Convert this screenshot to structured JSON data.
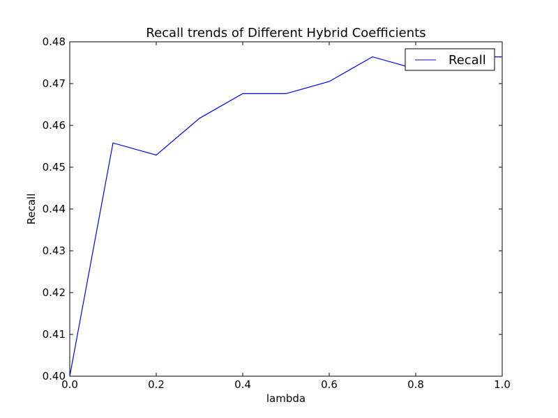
{
  "chart_data": {
    "type": "line",
    "title": "Recall trends of Different Hybrid Coefficients",
    "xlabel": "lambda",
    "ylabel": "Recall",
    "xlim": [
      0.0,
      1.0
    ],
    "ylim": [
      0.4,
      0.48
    ],
    "x_ticks": [
      "0.0",
      "0.2",
      "0.4",
      "0.6",
      "0.8",
      "1.0"
    ],
    "y_ticks": [
      "0.40",
      "0.41",
      "0.42",
      "0.43",
      "0.44",
      "0.45",
      "0.46",
      "0.47",
      "0.48"
    ],
    "grid": false,
    "legend_position": "top-right",
    "series": [
      {
        "name": "Recall",
        "color": "#0000ff",
        "x": [
          0.0,
          0.1,
          0.2,
          0.3,
          0.4,
          0.5,
          0.6,
          0.7,
          0.8,
          0.9,
          1.0
        ],
        "y": [
          0.4,
          0.4558,
          0.4529,
          0.4617,
          0.4676,
          0.4676,
          0.4705,
          0.4764,
          0.4735,
          0.4764,
          0.4764
        ]
      }
    ]
  }
}
